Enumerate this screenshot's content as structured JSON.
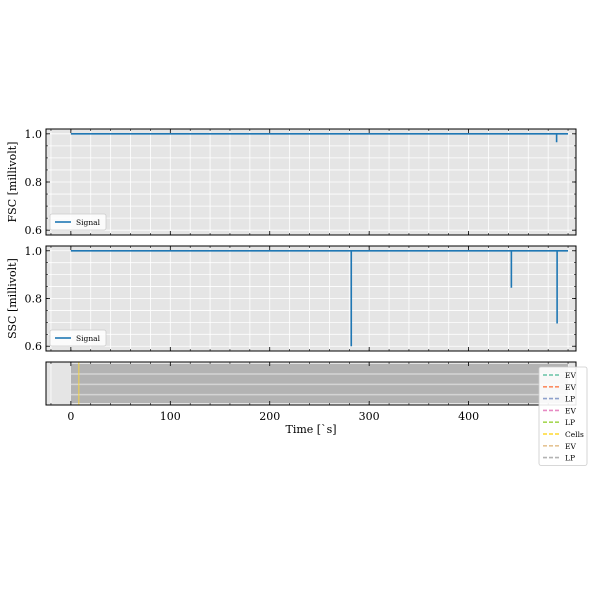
{
  "chart_data": [
    {
      "type": "line",
      "ylabel": "FSC [millivolt]",
      "xlim": [
        -25,
        508
      ],
      "ylim": [
        0.58,
        1.02
      ],
      "yticks": [
        0.6,
        0.8,
        1.0
      ],
      "ytick_labels": [
        "0.6",
        "0.8",
        "1.0"
      ],
      "grid": true,
      "legend_placement": "lower-left",
      "series": [
        {
          "name": "Signal",
          "color": "#1f77b4",
          "x": [
            0,
            488.5,
            488.5,
            488.5,
            500
          ],
          "y": [
            1.0,
            1.0,
            0.965,
            1.0,
            1.0
          ]
        }
      ]
    },
    {
      "type": "line",
      "ylabel": "SSC [millivolt]",
      "xlim": [
        -25,
        508
      ],
      "ylim": [
        0.58,
        1.02
      ],
      "yticks": [
        0.6,
        0.8,
        1.0
      ],
      "ytick_labels": [
        "0.6",
        "0.8",
        "1.0"
      ],
      "grid": true,
      "legend_placement": "lower-left",
      "series": [
        {
          "name": "Signal",
          "color": "#1f77b4",
          "x": [
            0,
            282,
            282,
            282,
            443,
            443,
            443,
            489,
            489,
            489,
            500
          ],
          "y": [
            1.0,
            1.0,
            0.6,
            1.0,
            1.0,
            0.845,
            1.0,
            1.0,
            0.695,
            1.0,
            1.0
          ]
        }
      ]
    },
    {
      "type": "area",
      "xlabel": "Time [`s]",
      "xlim": [
        -25,
        508
      ],
      "xticks": [
        0,
        100,
        200,
        300,
        400
      ],
      "xtick_labels": [
        "0",
        "100",
        "200",
        "300",
        "400"
      ],
      "grid": true,
      "legend_placement": "right",
      "series": [
        {
          "name": "EV",
          "color": "#66c2a5",
          "linestyle": "dashed"
        },
        {
          "name": "EV",
          "color": "#fc8d62",
          "linestyle": "dashed"
        },
        {
          "name": "LP",
          "color": "#8da0cb",
          "linestyle": "dashed"
        },
        {
          "name": "EV",
          "color": "#e78ac3",
          "linestyle": "dashed"
        },
        {
          "name": "LP",
          "color": "#a6d854",
          "linestyle": "dashed"
        },
        {
          "name": "Cells",
          "color": "#ffd92f",
          "linestyle": "dashed"
        },
        {
          "name": "EV",
          "color": "#e5c494",
          "linestyle": "dashed"
        },
        {
          "name": "LP",
          "color": "#b3b3b3",
          "linestyle": "dashed"
        }
      ],
      "bands": [
        {
          "label": "LP",
          "x_start": 0,
          "x_end": 500,
          "color": "#b3b3b3"
        }
      ],
      "markers": [
        {
          "label": "Cells",
          "x": 8,
          "color": "#ffd92f"
        }
      ]
    }
  ]
}
